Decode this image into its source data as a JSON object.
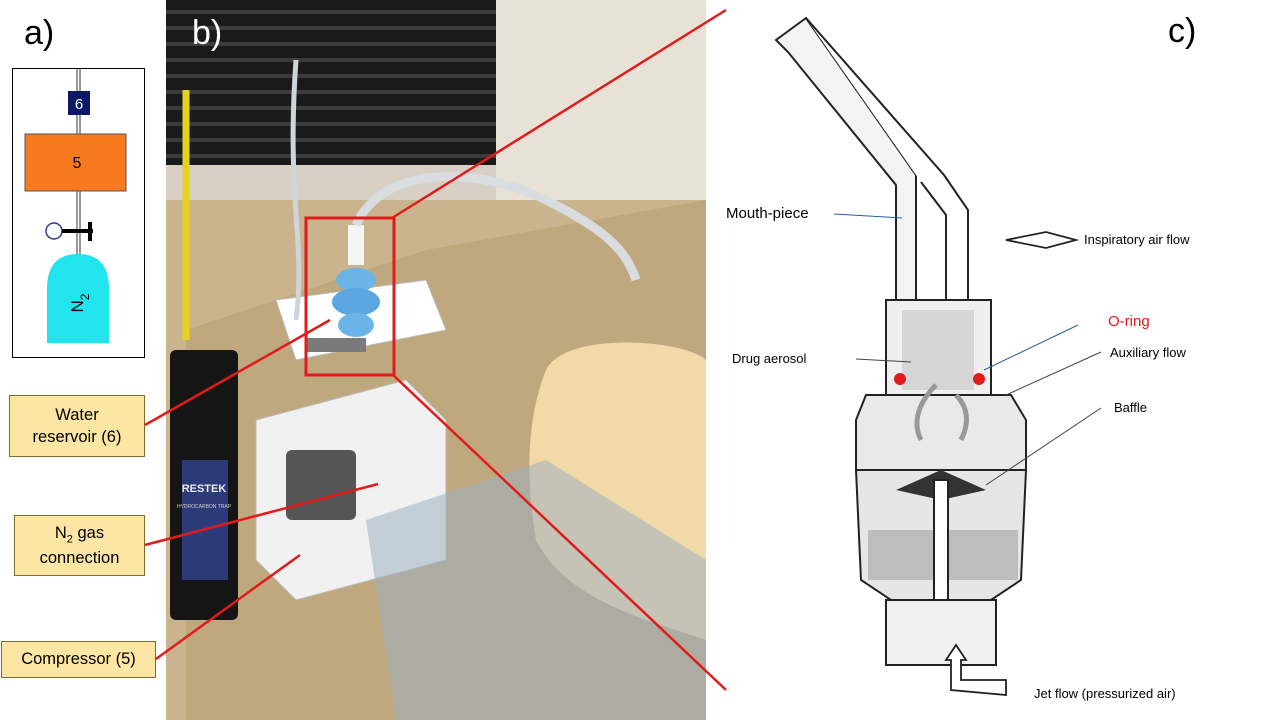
{
  "panels": {
    "a": "a)",
    "b": "b)",
    "c": "c)"
  },
  "schematic": {
    "reservoir_number": "6",
    "compressor_number": "5",
    "gas_label_main": "N",
    "gas_label_sub": "2"
  },
  "callouts": {
    "water_reservoir_line1": "Water",
    "water_reservoir_line2": "reservoir  (6)",
    "n2_main": "N",
    "n2_sub": "2",
    "n2_line1_rest": " gas",
    "n2_line2": "connection",
    "compressor": "Compressor  (5)"
  },
  "photo": {
    "trap_text": "RESTEK",
    "trap_subtext": "HYDROCARBON TRAP"
  },
  "diagram_labels": {
    "mouthpiece": "Mouth-piece",
    "inspiratory": "Inspiratory air flow",
    "oring": "O-ring",
    "drug_aerosol": "Drug aerosol",
    "auxiliary": "Auxiliary flow",
    "baffle": "Baffle",
    "jet_flow": "Jet flow (pressurized air)"
  },
  "colors": {
    "callout_fill": "#fde6a3",
    "highlight_red": "#e11b1b",
    "compressor_orange": "#f87a1e",
    "gas_cyan": "#22e4ee",
    "reservoir_navy": "#0d1a63"
  }
}
